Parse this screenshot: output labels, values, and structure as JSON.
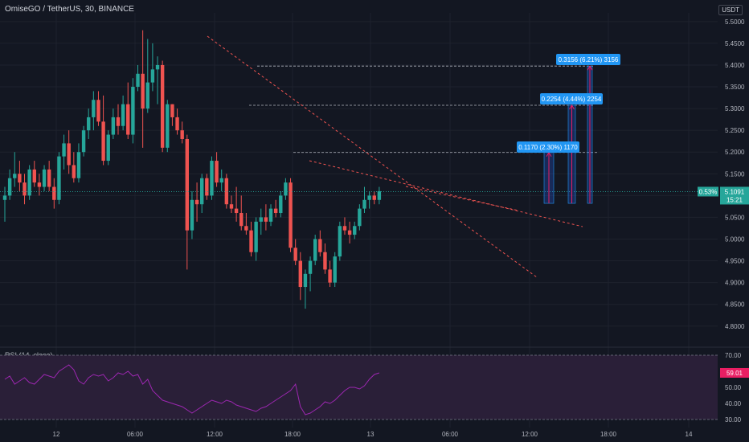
{
  "header": {
    "title": "OmiseGO / TetherUS, 30, BINANCE",
    "currency_badge": "USDT"
  },
  "rsi_panel": {
    "title": "RSI (14, close)",
    "value_label": "59.01",
    "ticks": [
      "70.00",
      "60.00",
      "50.00",
      "40.00",
      "30.00"
    ],
    "upper_band": 70,
    "lower_band": 30,
    "color": "#9c27b0"
  },
  "price_label": {
    "change": "0.53%",
    "price": "5.1091",
    "countdown": "15:21"
  },
  "colors": {
    "bull": "#26a69a",
    "bear": "#ef5350",
    "background": "#131722",
    "trendline": "#ef5350",
    "measure": "#2962ff",
    "measure_label": "#2196f3",
    "current_price": "#26a69a",
    "rsi_fill": "#2a1f38"
  },
  "chart_data": {
    "type": "candlestick",
    "title": "OmiseGO / TetherUS, 30, BINANCE",
    "ylim": [
      4.77,
      5.52
    ],
    "y_ticks": [
      "5.5000",
      "5.4500",
      "5.4000",
      "5.3500",
      "5.3000",
      "5.2500",
      "5.2000",
      "5.1500",
      "5.1000",
      "5.0500",
      "5.0000",
      "4.9500",
      "4.9000",
      "4.8500",
      "4.8000"
    ],
    "x_ticks": [
      "12",
      "06:00",
      "12:00",
      "18:00",
      "13",
      "06:00",
      "12:00",
      "18:00",
      "14"
    ],
    "candles": [
      {
        "o": 5.09,
        "h": 5.12,
        "l": 5.04,
        "c": 5.1
      },
      {
        "o": 5.1,
        "h": 5.16,
        "l": 5.09,
        "c": 5.14
      },
      {
        "o": 5.14,
        "h": 5.2,
        "l": 5.12,
        "c": 5.15
      },
      {
        "o": 5.15,
        "h": 5.18,
        "l": 5.11,
        "c": 5.13
      },
      {
        "o": 5.13,
        "h": 5.15,
        "l": 5.08,
        "c": 5.1
      },
      {
        "o": 5.1,
        "h": 5.17,
        "l": 5.09,
        "c": 5.16
      },
      {
        "o": 5.16,
        "h": 5.18,
        "l": 5.12,
        "c": 5.13
      },
      {
        "o": 5.13,
        "h": 5.15,
        "l": 5.1,
        "c": 5.12
      },
      {
        "o": 5.12,
        "h": 5.17,
        "l": 5.11,
        "c": 5.16
      },
      {
        "o": 5.16,
        "h": 5.18,
        "l": 5.11,
        "c": 5.12
      },
      {
        "o": 5.12,
        "h": 5.14,
        "l": 5.07,
        "c": 5.09
      },
      {
        "o": 5.09,
        "h": 5.2,
        "l": 5.08,
        "c": 5.19
      },
      {
        "o": 5.19,
        "h": 5.24,
        "l": 5.16,
        "c": 5.22
      },
      {
        "o": 5.22,
        "h": 5.25,
        "l": 5.15,
        "c": 5.17
      },
      {
        "o": 5.17,
        "h": 5.2,
        "l": 5.13,
        "c": 5.14
      },
      {
        "o": 5.14,
        "h": 5.22,
        "l": 5.13,
        "c": 5.2
      },
      {
        "o": 5.2,
        "h": 5.26,
        "l": 5.19,
        "c": 5.25
      },
      {
        "o": 5.25,
        "h": 5.3,
        "l": 5.23,
        "c": 5.28
      },
      {
        "o": 5.28,
        "h": 5.34,
        "l": 5.25,
        "c": 5.32
      },
      {
        "o": 5.32,
        "h": 5.34,
        "l": 5.26,
        "c": 5.27
      },
      {
        "o": 5.27,
        "h": 5.33,
        "l": 5.17,
        "c": 5.18
      },
      {
        "o": 5.18,
        "h": 5.25,
        "l": 5.17,
        "c": 5.24
      },
      {
        "o": 5.24,
        "h": 5.3,
        "l": 5.23,
        "c": 5.28
      },
      {
        "o": 5.28,
        "h": 5.31,
        "l": 5.24,
        "c": 5.26
      },
      {
        "o": 5.26,
        "h": 5.33,
        "l": 5.25,
        "c": 5.31
      },
      {
        "o": 5.31,
        "h": 5.36,
        "l": 5.23,
        "c": 5.24
      },
      {
        "o": 5.24,
        "h": 5.37,
        "l": 5.22,
        "c": 5.35
      },
      {
        "o": 5.35,
        "h": 5.4,
        "l": 5.34,
        "c": 5.38
      },
      {
        "o": 5.38,
        "h": 5.48,
        "l": 5.21,
        "c": 5.3
      },
      {
        "o": 5.3,
        "h": 5.46,
        "l": 5.29,
        "c": 5.36
      },
      {
        "o": 5.36,
        "h": 5.45,
        "l": 5.34,
        "c": 5.39
      },
      {
        "o": 5.39,
        "h": 5.42,
        "l": 5.31,
        "c": 5.4
      },
      {
        "o": 5.4,
        "h": 5.41,
        "l": 5.2,
        "c": 5.21
      },
      {
        "o": 5.21,
        "h": 5.32,
        "l": 5.2,
        "c": 5.31
      },
      {
        "o": 5.31,
        "h": 5.31,
        "l": 5.26,
        "c": 5.28
      },
      {
        "o": 5.28,
        "h": 5.3,
        "l": 5.24,
        "c": 5.25
      },
      {
        "o": 5.25,
        "h": 5.27,
        "l": 5.22,
        "c": 5.23
      },
      {
        "o": 5.23,
        "h": 5.24,
        "l": 4.93,
        "c": 5.02
      },
      {
        "o": 5.02,
        "h": 5.11,
        "l": 5.0,
        "c": 5.09
      },
      {
        "o": 5.09,
        "h": 5.13,
        "l": 5.04,
        "c": 5.08
      },
      {
        "o": 5.08,
        "h": 5.15,
        "l": 5.06,
        "c": 5.14
      },
      {
        "o": 5.14,
        "h": 5.15,
        "l": 5.09,
        "c": 5.1
      },
      {
        "o": 5.1,
        "h": 5.19,
        "l": 5.09,
        "c": 5.18
      },
      {
        "o": 5.18,
        "h": 5.2,
        "l": 5.12,
        "c": 5.13
      },
      {
        "o": 5.13,
        "h": 5.16,
        "l": 5.11,
        "c": 5.14
      },
      {
        "o": 5.14,
        "h": 5.15,
        "l": 5.07,
        "c": 5.08
      },
      {
        "o": 5.08,
        "h": 5.1,
        "l": 5.06,
        "c": 5.07
      },
      {
        "o": 5.07,
        "h": 5.12,
        "l": 5.04,
        "c": 5.06
      },
      {
        "o": 5.06,
        "h": 5.1,
        "l": 5.02,
        "c": 5.03
      },
      {
        "o": 5.03,
        "h": 5.06,
        "l": 5.01,
        "c": 5.02
      },
      {
        "o": 5.02,
        "h": 5.04,
        "l": 4.96,
        "c": 4.97
      },
      {
        "o": 4.97,
        "h": 5.05,
        "l": 4.95,
        "c": 5.04
      },
      {
        "o": 5.04,
        "h": 5.07,
        "l": 5.01,
        "c": 5.05
      },
      {
        "o": 5.05,
        "h": 5.08,
        "l": 5.02,
        "c": 5.04
      },
      {
        "o": 5.04,
        "h": 5.08,
        "l": 5.03,
        "c": 5.07
      },
      {
        "o": 5.07,
        "h": 5.09,
        "l": 5.05,
        "c": 5.06
      },
      {
        "o": 5.06,
        "h": 5.11,
        "l": 5.05,
        "c": 5.1
      },
      {
        "o": 5.1,
        "h": 5.14,
        "l": 5.09,
        "c": 5.13
      },
      {
        "o": 5.13,
        "h": 5.14,
        "l": 4.97,
        "c": 4.98
      },
      {
        "o": 4.98,
        "h": 5.0,
        "l": 4.94,
        "c": 4.95
      },
      {
        "o": 4.95,
        "h": 4.97,
        "l": 4.86,
        "c": 4.89
      },
      {
        "o": 4.89,
        "h": 4.93,
        "l": 4.84,
        "c": 4.92
      },
      {
        "o": 4.92,
        "h": 4.96,
        "l": 4.88,
        "c": 4.95
      },
      {
        "o": 4.95,
        "h": 5.01,
        "l": 4.94,
        "c": 5.0
      },
      {
        "o": 5.0,
        "h": 5.02,
        "l": 4.96,
        "c": 4.97
      },
      {
        "o": 4.97,
        "h": 4.99,
        "l": 4.92,
        "c": 4.93
      },
      {
        "o": 4.93,
        "h": 4.95,
        "l": 4.89,
        "c": 4.9
      },
      {
        "o": 4.9,
        "h": 4.97,
        "l": 4.89,
        "c": 4.96
      },
      {
        "o": 4.96,
        "h": 5.04,
        "l": 4.95,
        "c": 5.03
      },
      {
        "o": 5.03,
        "h": 5.05,
        "l": 5.01,
        "c": 5.02
      },
      {
        "o": 5.02,
        "h": 5.04,
        "l": 4.99,
        "c": 5.01
      },
      {
        "o": 5.01,
        "h": 5.04,
        "l": 5.0,
        "c": 5.03
      },
      {
        "o": 5.03,
        "h": 5.08,
        "l": 5.02,
        "c": 5.07
      },
      {
        "o": 5.07,
        "h": 5.12,
        "l": 5.06,
        "c": 5.09
      },
      {
        "o": 5.09,
        "h": 5.11,
        "l": 5.07,
        "c": 5.1
      },
      {
        "o": 5.1,
        "h": 5.11,
        "l": 5.08,
        "c": 5.09
      },
      {
        "o": 5.09,
        "h": 5.12,
        "l": 5.08,
        "c": 5.11
      }
    ],
    "current_price": 5.1091,
    "rsi": [
      55,
      57,
      52,
      54,
      56,
      53,
      52,
      55,
      58,
      57,
      56,
      60,
      62,
      64,
      61,
      54,
      52,
      56,
      58,
      57,
      58,
      54,
      56,
      59,
      58,
      60,
      57,
      58,
      52,
      55,
      48,
      45,
      42,
      41,
      40,
      39,
      38,
      36,
      34,
      36,
      38,
      40,
      42,
      41,
      40,
      42,
      41,
      39,
      38,
      37,
      36,
      35,
      37,
      38,
      40,
      42,
      44,
      46,
      48,
      52,
      38,
      33,
      34,
      36,
      38,
      41,
      40,
      42,
      45,
      48,
      50,
      50,
      49,
      51,
      55,
      58,
      59.01
    ],
    "measurements": [
      {
        "label": "0.1170 (2.30%) 1170",
        "from": 5.0821,
        "to": 5.1991
      },
      {
        "label": "0.2254 (4.44%) 2254",
        "from": 5.0821,
        "to": 5.3075
      },
      {
        "label": "0.3156 (6.21%) 3156",
        "from": 5.0821,
        "to": 5.3977
      }
    ],
    "horizontal_levels": [
      5.1991,
      5.3075,
      5.3977
    ]
  }
}
